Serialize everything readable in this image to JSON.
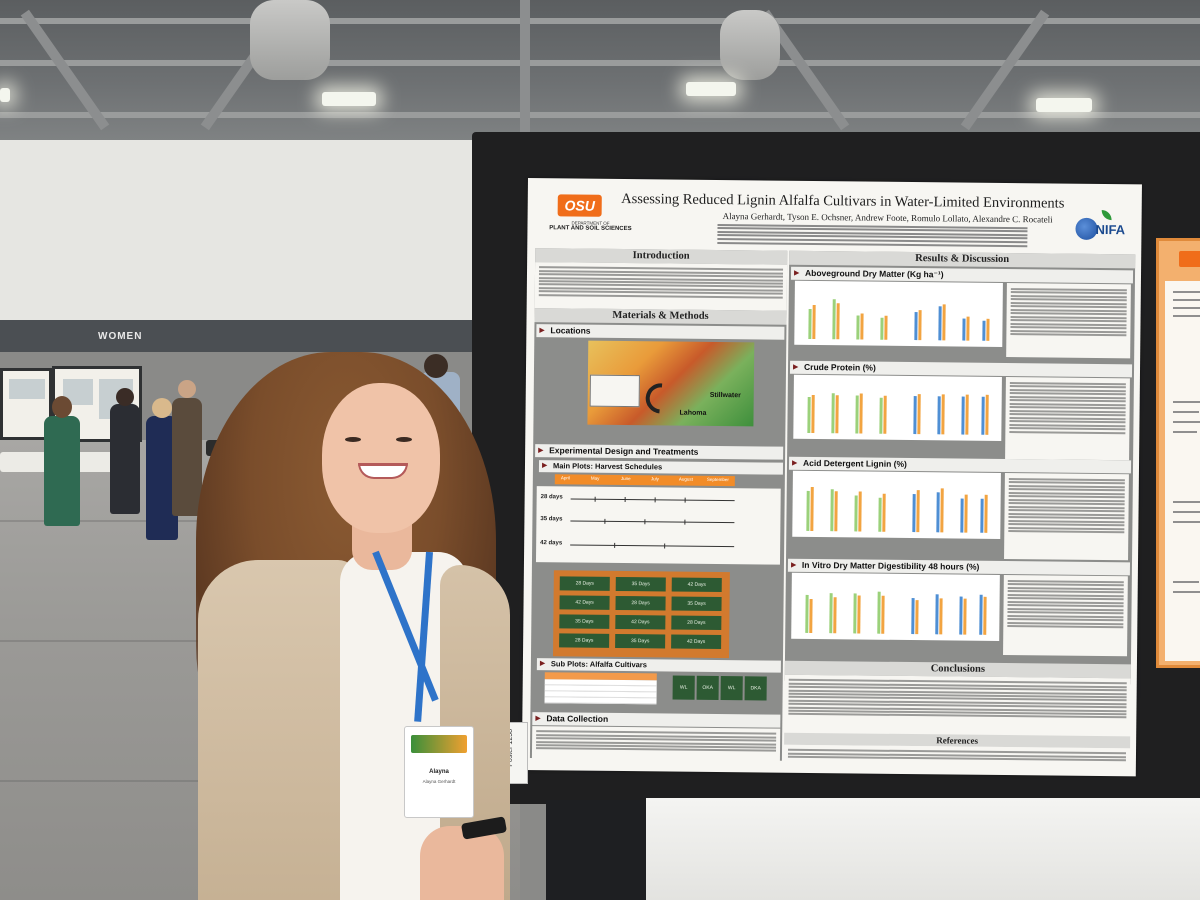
{
  "hall": {
    "wall_sign": "WOMEN",
    "colors": {
      "floor": "#9b9a97",
      "wall": "#e6e6e2",
      "board": "#1f1f20"
    }
  },
  "poster": {
    "title": "Assessing Reduced Lignin Alfalfa Cultivars in Water-Limited Environments",
    "authors": "Alayna Gerhardt, Tyson E. Ochsner, Andrew Foote, Romulo Lollato, Alexandre C. Rocateli",
    "osu_logo": "OSU",
    "osu_dept_main": "PLANT AND SOIL SCIENCES",
    "osu_dept_top": "DEPARTMENT OF",
    "nifa_logo": "NIFA",
    "sections": {
      "introduction": "Introduction",
      "materials_methods": "Materials & Methods",
      "locations": "Locations",
      "experimental_design": "Experimental Design and Treatments",
      "main_plots": "Main Plots: Harvest Schedules",
      "sub_plots": "Sub Plots: Alfalfa Cultivars",
      "data_collection": "Data Collection",
      "results": "Results & Discussion",
      "aboveground": "Aboveground Dry Matter (Kg ha⁻¹)",
      "crude_protein": "Crude Protein (%)",
      "adl": "Acid Detergent Lignin (%)",
      "ivdmd": "In Vitro Dry Matter Digestibility 48 hours (%)",
      "conclusions": "Conclusions",
      "references": "References"
    },
    "map_labels": {
      "stillwater": "Stillwater",
      "lahoma": "Lahoma"
    },
    "timeline": {
      "months": [
        "April",
        "May",
        "June",
        "July",
        "August",
        "September"
      ],
      "rows": [
        "28 days",
        "35 days",
        "42 days"
      ]
    },
    "plots": [
      "28 Days",
      "35 Days",
      "42 Days",
      "42 Days",
      "28 Days",
      "35 Days",
      "35 Days",
      "42 Days",
      "28 Days",
      "28 Days",
      "35 Days",
      "42 Days"
    ],
    "subplots": [
      "WL",
      "OKA",
      "WL",
      "DKA"
    ],
    "poster_number": "Poster 1258"
  },
  "badge": {
    "name": "Alayna",
    "subtitle": "Alayna Gerhardt"
  }
}
